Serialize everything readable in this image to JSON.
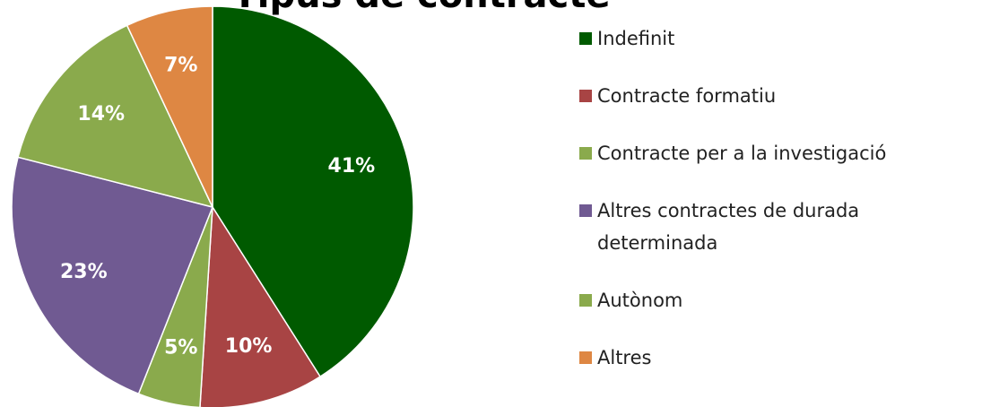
{
  "chart_data": {
    "type": "pie",
    "title": "Tipus de contracte",
    "categories": [
      "Indefinit",
      "Contracte formatiu",
      "Contracte per a la investigació",
      "Altres contractes de durada determinada",
      "Autònom",
      "Altres"
    ],
    "values": [
      41,
      10,
      5,
      23,
      14,
      7
    ],
    "value_labels": [
      "41%",
      "10%",
      "5%",
      "23%",
      "14%",
      "7%"
    ],
    "colors": [
      "#005a00",
      "#a84444",
      "#8aaa4c",
      "#705a92",
      "#8aaa4c",
      "#de8743"
    ],
    "legend": "right"
  }
}
